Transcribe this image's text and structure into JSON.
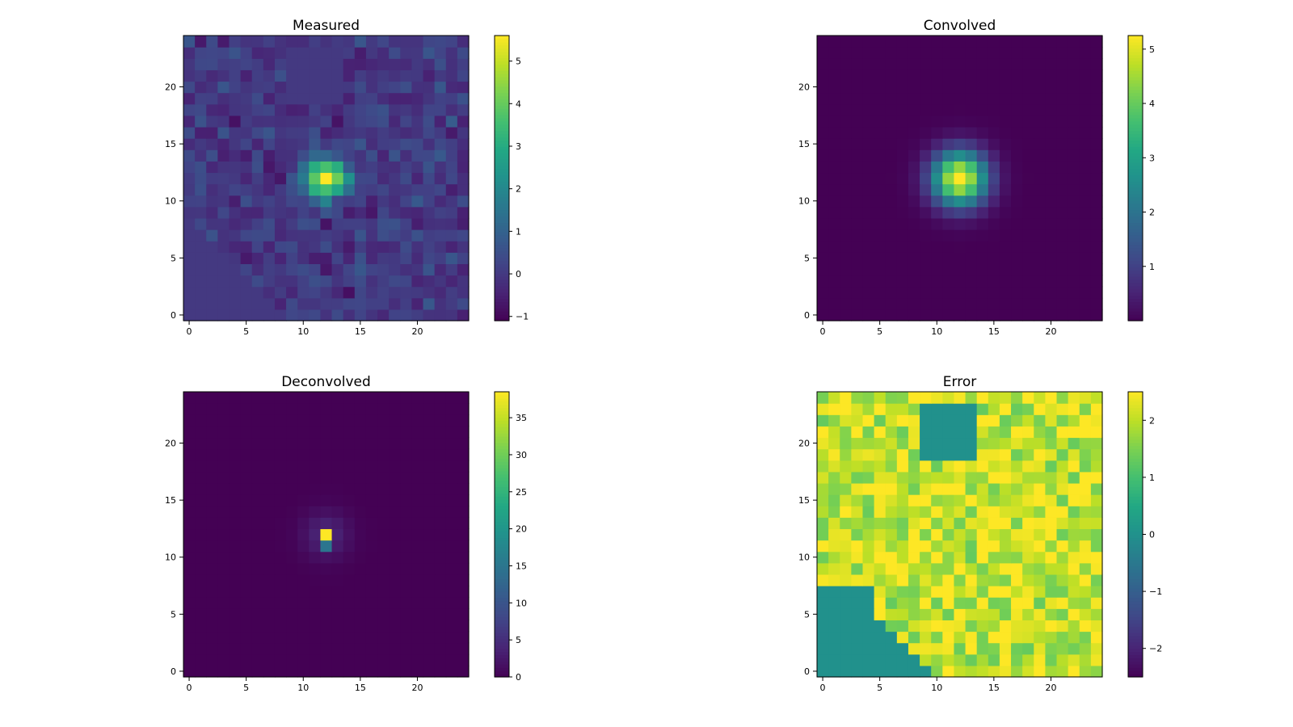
{
  "chart_data": [
    {
      "type": "heatmap",
      "title": "Measured",
      "grid_size": 25,
      "origin": "lower",
      "colormap": "viridis",
      "vmin": -1.1,
      "vmax": 5.6,
      "xticks": [
        "0",
        "5",
        "10",
        "15",
        "20"
      ],
      "yticks": [
        "0",
        "5",
        "10",
        "15",
        "20"
      ],
      "colorbar_ticks": [
        {
          "value": 5,
          "label": "5"
        },
        {
          "value": 4,
          "label": "4"
        },
        {
          "value": 3,
          "label": "3"
        },
        {
          "value": 2,
          "label": "2"
        },
        {
          "value": 1,
          "label": "1"
        },
        {
          "value": 0,
          "label": "0"
        },
        {
          "value": -1,
          "label": "−1"
        }
      ],
      "peak": {
        "x": 12,
        "y": 12,
        "value": 5.6
      },
      "note": "noisy background around 0 with gaussian blob centered at (12,12)"
    },
    {
      "type": "heatmap",
      "title": "Convolved",
      "grid_size": 25,
      "origin": "lower",
      "colormap": "viridis",
      "vmin": 0.0,
      "vmax": 5.25,
      "xticks": [
        "0",
        "5",
        "10",
        "15",
        "20"
      ],
      "yticks": [
        "0",
        "5",
        "10",
        "15",
        "20"
      ],
      "colorbar_ticks": [
        {
          "value": 5,
          "label": "5"
        },
        {
          "value": 4,
          "label": "4"
        },
        {
          "value": 3,
          "label": "3"
        },
        {
          "value": 2,
          "label": "2"
        },
        {
          "value": 1,
          "label": "1"
        }
      ],
      "peak": {
        "x": 12,
        "y": 12,
        "value": 5.25
      },
      "note": "smooth gaussian centered at (12,12)"
    },
    {
      "type": "heatmap",
      "title": "Deconvolved",
      "grid_size": 25,
      "origin": "lower",
      "colormap": "viridis",
      "vmin": 0,
      "vmax": 38.5,
      "xticks": [
        "0",
        "5",
        "10",
        "15",
        "20"
      ],
      "yticks": [
        "0",
        "5",
        "10",
        "15",
        "20"
      ],
      "colorbar_ticks": [
        {
          "value": 35,
          "label": "35"
        },
        {
          "value": 30,
          "label": "30"
        },
        {
          "value": 25,
          "label": "25"
        },
        {
          "value": 20,
          "label": "20"
        },
        {
          "value": 15,
          "label": "15"
        },
        {
          "value": 10,
          "label": "10"
        },
        {
          "value": 5,
          "label": "5"
        },
        {
          "value": 0,
          "label": "0"
        }
      ],
      "peak": {
        "x": 12,
        "y": 12,
        "value": 38.5
      },
      "secondary": {
        "x": 12,
        "y": 11,
        "value": 15
      },
      "note": "near-zero everywhere except a sharp peak at (12,12)"
    },
    {
      "type": "heatmap",
      "title": "Error",
      "grid_size": 25,
      "origin": "lower",
      "colormap": "viridis",
      "vmin": -2.5,
      "vmax": 2.5,
      "xticks": [
        "0",
        "5",
        "10",
        "15",
        "20"
      ],
      "yticks": [
        "0",
        "5",
        "10",
        "15",
        "20"
      ],
      "colorbar_ticks": [
        {
          "value": 2,
          "label": "2"
        },
        {
          "value": 1,
          "label": "1"
        },
        {
          "value": 0,
          "label": "0"
        },
        {
          "value": -1,
          "label": "−1"
        },
        {
          "value": -2,
          "label": "−2"
        }
      ],
      "zero_regions": [
        "lower-left triangle",
        "block rows 19-23, cols 9-13"
      ],
      "note": "mostly values between 1.2 and 2.5 with some regions exactly 0"
    }
  ]
}
